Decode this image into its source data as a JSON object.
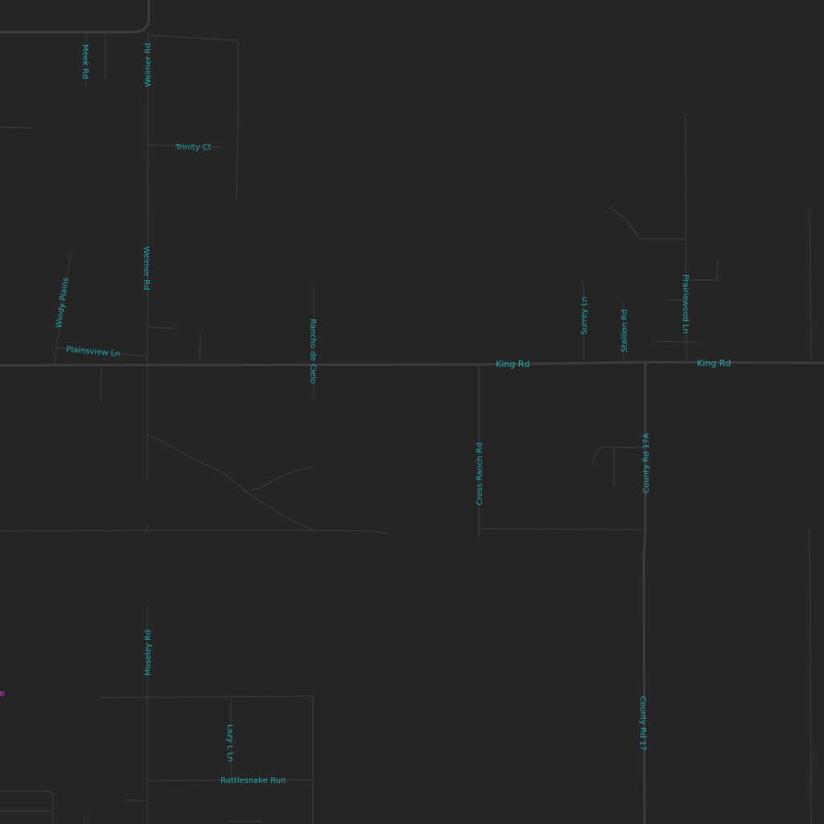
{
  "map": {
    "background": "#252525",
    "road_color": "#3a3a3a",
    "label_color": "#1fa3a6",
    "place_color": "#d03ad0"
  },
  "labels": {
    "meek_rd": "Meek Rd",
    "weimer_rd_top": "Weimer Rd",
    "weimer_rd_mid": "Weimer Rd",
    "trinity_ct": "Trinity Ct",
    "windy_plains": "Windy Plains",
    "plainsview_ln": "Plainsview Ln",
    "rancho_de_cielo": "Rancho de Cielo",
    "king_rd_center": "King Rd",
    "king_rd_east": "King Rd",
    "surrey_ln": "Surrey Ln",
    "stallion_rd": "Stallion Rd",
    "prairiewood_ln": "Prairiewood Ln",
    "cross_ranch_rd": "Cross Ranch Rd",
    "county_rd_17a": "County Rd 17A",
    "moseley_rd": "Moseley Rd",
    "lazy_l_ln": "Lazy L Ln",
    "rattlesnake_run": "Rattlesnake Run",
    "county_rd_17": "County Rd 17",
    "edge_place": "e"
  }
}
